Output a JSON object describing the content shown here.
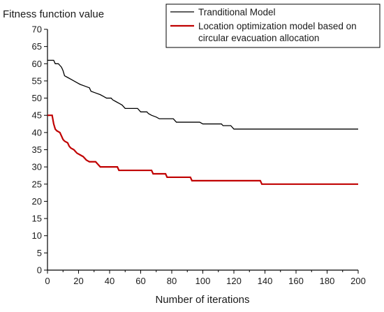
{
  "chart_data": {
    "type": "line",
    "title": "",
    "ylabel": "Fitness function value",
    "xlabel": "Number of iterations",
    "xlim": [
      0,
      200
    ],
    "ylim": [
      0,
      70
    ],
    "xticks": [
      0,
      20,
      40,
      60,
      80,
      100,
      120,
      140,
      160,
      180,
      200
    ],
    "yticks": [
      0,
      5,
      10,
      15,
      20,
      25,
      30,
      35,
      40,
      45,
      50,
      55,
      60,
      65,
      70
    ],
    "grid": false,
    "legend_position": "top-right",
    "series": [
      {
        "name": "Tranditional Model",
        "color": "#000000",
        "points": [
          [
            0,
            61
          ],
          [
            4,
            61
          ],
          [
            5,
            60
          ],
          [
            7,
            60
          ],
          [
            8,
            59.5
          ],
          [
            9,
            59
          ],
          [
            10,
            58
          ],
          [
            11,
            56.5
          ],
          [
            13,
            56
          ],
          [
            15,
            55.5
          ],
          [
            17,
            55
          ],
          [
            19,
            54.5
          ],
          [
            21,
            54
          ],
          [
            24,
            53.5
          ],
          [
            27,
            53
          ],
          [
            28,
            52
          ],
          [
            31,
            51.5
          ],
          [
            34,
            51
          ],
          [
            36,
            50.5
          ],
          [
            38,
            50
          ],
          [
            41,
            50
          ],
          [
            42,
            49.5
          ],
          [
            44,
            49
          ],
          [
            46,
            48.5
          ],
          [
            48,
            48
          ],
          [
            50,
            47
          ],
          [
            58,
            47
          ],
          [
            60,
            46
          ],
          [
            64,
            46
          ],
          [
            65,
            45.5
          ],
          [
            67,
            45
          ],
          [
            70,
            44.5
          ],
          [
            72,
            44
          ],
          [
            81,
            44
          ],
          [
            83,
            43
          ],
          [
            98,
            43
          ],
          [
            100,
            42.5
          ],
          [
            112,
            42.5
          ],
          [
            113,
            42
          ],
          [
            118,
            42
          ],
          [
            120,
            41
          ],
          [
            200,
            41
          ]
        ]
      },
      {
        "name": "Location optimization model based on circular evacuation allocation",
        "color": "#c00000",
        "points": [
          [
            0,
            45
          ],
          [
            3,
            45
          ],
          [
            4,
            42.5
          ],
          [
            5,
            41
          ],
          [
            6,
            40.5
          ],
          [
            8,
            40
          ],
          [
            9,
            39
          ],
          [
            10,
            38
          ],
          [
            11,
            37.5
          ],
          [
            13,
            37
          ],
          [
            14,
            36
          ],
          [
            15,
            35.5
          ],
          [
            17,
            35
          ],
          [
            18,
            34.5
          ],
          [
            19,
            34
          ],
          [
            21,
            33.5
          ],
          [
            23,
            33
          ],
          [
            25,
            32
          ],
          [
            27,
            31.5
          ],
          [
            31,
            31.5
          ],
          [
            32,
            31
          ],
          [
            34,
            30
          ],
          [
            45,
            30
          ],
          [
            46,
            29
          ],
          [
            67,
            29
          ],
          [
            68,
            28
          ],
          [
            76,
            28
          ],
          [
            77,
            27
          ],
          [
            92,
            27
          ],
          [
            93,
            26
          ],
          [
            137,
            26
          ],
          [
            138,
            25
          ],
          [
            200,
            25
          ]
        ]
      }
    ]
  }
}
